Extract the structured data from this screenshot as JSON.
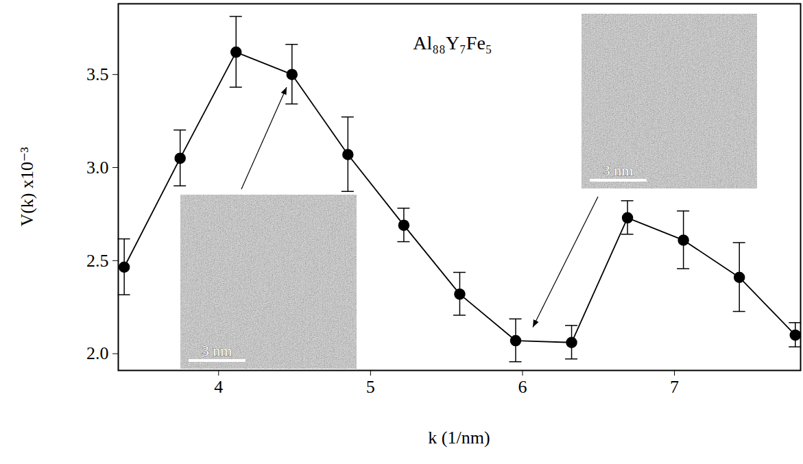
{
  "chart_data": {
    "type": "line",
    "title": "Al₈₈Y₇Fe₅",
    "x_label": "k (1/nm)",
    "y_label": "V(k) x10⁻³",
    "x": [
      3.379,
      3.747,
      4.115,
      4.483,
      4.851,
      5.219,
      5.587,
      5.955,
      6.323,
      6.691,
      7.059,
      7.427,
      7.795
    ],
    "values": [
      2.465,
      3.05,
      3.62,
      3.5,
      3.07,
      2.69,
      2.32,
      2.07,
      2.06,
      2.73,
      2.61,
      2.41,
      2.1
    ],
    "errors": [
      0.15,
      0.15,
      0.19,
      0.16,
      0.2,
      0.09,
      0.115,
      0.115,
      0.09,
      0.09,
      0.155,
      0.185,
      0.065
    ],
    "color": "#000000",
    "marker": "circle",
    "line_style": "solid",
    "xlim": [
      3.34,
      7.83
    ],
    "ylim": [
      1.91,
      3.88
    ],
    "xticks": [
      4,
      5,
      6,
      7
    ],
    "yticks": [
      {
        "value": 2,
        "label": "2.0"
      },
      {
        "value": 2.5,
        "label": "2.5"
      },
      {
        "value": 3,
        "label": "3.0"
      },
      {
        "value": 3.5,
        "label": "3.5"
      }
    ],
    "annotations": [
      {
        "text": "3 nm",
        "x": 4.45,
        "y": 3.43
      },
      {
        "text": "3 nm",
        "x": 6.07,
        "y": 2.14
      }
    ]
  }
}
